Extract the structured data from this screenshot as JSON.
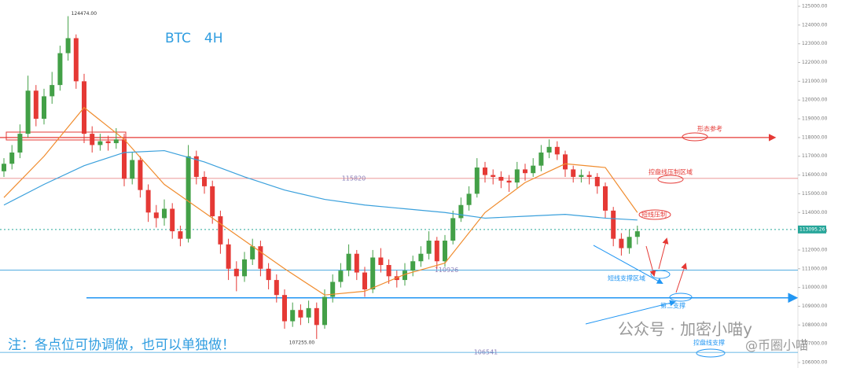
{
  "chart_data": {
    "type": "candlestick",
    "title": "BTC　4H",
    "note": "注：各点位可协调做，也可以单独做！",
    "watermark": "公众号 · 加密小喵y",
    "watermark_handle": "@币圈小喵",
    "up_color": "#43a047",
    "down_color": "#e53935",
    "ohlc": {
      "open": [
        116200,
        116600,
        117200,
        118200,
        120500,
        119000,
        120200,
        120800,
        122500,
        123300,
        121000,
        118200,
        117600,
        117800,
        117700,
        117900,
        115800,
        116800,
        115200,
        114000,
        113700,
        114200,
        113000,
        112600,
        117000,
        115900,
        115400,
        113800,
        112300,
        111000,
        110600,
        111500,
        112200,
        111000,
        110400,
        109600,
        108200,
        108800,
        108400,
        108900,
        108000,
        109500,
        110300,
        110900,
        111800,
        110800,
        109900,
        111600,
        111200,
        110600,
        110400,
        110900,
        111400,
        111800,
        112500,
        111400,
        112500,
        113700,
        114400,
        115000,
        116400,
        116000,
        115900,
        115700,
        115600,
        116300,
        116100,
        116500,
        117200,
        117500,
        117100,
        116300,
        115900,
        116000,
        115900,
        115400,
        114100,
        112600,
        112100,
        112700
      ],
      "high": [
        116900,
        117600,
        118700,
        121300,
        120800,
        120600,
        121500,
        122900,
        124474,
        123500,
        121400,
        118600,
        118200,
        118100,
        118500,
        118200,
        117200,
        117000,
        115500,
        114400,
        114700,
        114500,
        113300,
        117600,
        117300,
        116200,
        115700,
        114100,
        112600,
        111400,
        111900,
        112600,
        112500,
        111300,
        110700,
        109900,
        109200,
        109100,
        109300,
        109200,
        109900,
        110700,
        111300,
        112300,
        112000,
        111100,
        112000,
        112100,
        111500,
        110900,
        111300,
        111700,
        112200,
        113000,
        112700,
        112800,
        114100,
        114800,
        115400,
        116900,
        116700,
        116300,
        116200,
        116000,
        116700,
        116600,
        116900,
        117600,
        117900,
        117800,
        117300,
        116500,
        116300,
        116200,
        116100,
        115600,
        114300,
        112900,
        113100,
        113300
      ],
      "low": [
        115900,
        116300,
        116900,
        118000,
        118600,
        118700,
        119800,
        120500,
        122100,
        120600,
        117700,
        117200,
        117300,
        117300,
        117400,
        115400,
        115500,
        114800,
        113500,
        113200,
        113300,
        112600,
        112200,
        112400,
        115500,
        115000,
        113400,
        111800,
        110400,
        109800,
        110300,
        111200,
        110600,
        109900,
        109200,
        107800,
        107900,
        108000,
        108100,
        107255,
        107800,
        109200,
        110000,
        110600,
        110400,
        109500,
        109700,
        110800,
        110200,
        110000,
        110100,
        110600,
        111100,
        111500,
        111000,
        111100,
        112300,
        113500,
        114100,
        114800,
        115600,
        115500,
        115300,
        115100,
        115300,
        115700,
        115900,
        116200,
        116900,
        116800,
        115900,
        115600,
        115600,
        115500,
        115000,
        113700,
        112200,
        111700,
        111800,
        112300
      ],
      "close": [
        116600,
        117200,
        118200,
        120500,
        119000,
        120200,
        120800,
        122500,
        123300,
        121000,
        118200,
        117600,
        117800,
        117700,
        117900,
        115800,
        116800,
        115200,
        114000,
        113700,
        114200,
        113000,
        112600,
        117000,
        115900,
        115400,
        113800,
        112300,
        111000,
        110600,
        111500,
        112200,
        111000,
        110400,
        109600,
        108200,
        108800,
        108400,
        108900,
        108000,
        109500,
        110300,
        110900,
        111800,
        110800,
        109900,
        111600,
        111200,
        110600,
        110400,
        110900,
        111400,
        111800,
        112500,
        111400,
        112500,
        113700,
        114400,
        115000,
        116400,
        116000,
        115900,
        115700,
        115600,
        116300,
        116100,
        116500,
        117200,
        117500,
        117100,
        116300,
        115900,
        116000,
        115900,
        115400,
        114100,
        112600,
        112100,
        112700,
        113000
      ]
    },
    "moving_averages": [
      {
        "color": "#f08c2e",
        "x": [
          0,
          5,
          10,
          15,
          20,
          25,
          30,
          35,
          40,
          45,
          50,
          55,
          60,
          65,
          70,
          75,
          79
        ],
        "values": [
          114800,
          117000,
          119600,
          117900,
          115500,
          114000,
          112500,
          111000,
          109600,
          109800,
          110700,
          111300,
          114000,
          115600,
          116600,
          116400,
          114000
        ]
      },
      {
        "color": "#3aa0dc",
        "x": [
          0,
          5,
          10,
          15,
          20,
          25,
          30,
          35,
          40,
          45,
          50,
          55,
          60,
          65,
          70,
          75,
          79
        ],
        "values": [
          114400,
          115500,
          116500,
          117200,
          117300,
          116700,
          115900,
          115200,
          114700,
          114400,
          114200,
          114000,
          113700,
          113800,
          113900,
          113700,
          113600
        ]
      }
    ],
    "extremes": [
      {
        "index": 8,
        "value": 124474,
        "label": "124474.00"
      },
      {
        "index": 39,
        "value": 107255,
        "label": "107255.00"
      }
    ],
    "levels": [
      {
        "value": 118000,
        "color": "#e53935",
        "show_label": false
      },
      {
        "value": 115820,
        "color": "#e57373",
        "show_label": true
      },
      {
        "value": 110926,
        "color": "#3aa0dc",
        "show_label": true
      },
      {
        "value": 109450,
        "color": "#2196f3",
        "show_label": false
      },
      {
        "value": 106541,
        "color": "#3aa0dc",
        "show_label": true
      }
    ],
    "last_price": 113095.26,
    "annotations": [
      {
        "text": "形态参考",
        "color": "#e53935"
      },
      {
        "text": "控盘线压制区域",
        "color": "#e53935"
      },
      {
        "text": "短线压制",
        "color": "#e53935"
      },
      {
        "text": "短线支撑区域",
        "color": "#2196f3"
      },
      {
        "text": "第二支撑",
        "color": "#2196f3"
      },
      {
        "text": "控盘线支撑",
        "color": "#2196f3"
      }
    ],
    "ylim": [
      106000,
      125000
    ],
    "yticks": [
      {
        "value": 106000,
        "label": "106000.00"
      },
      {
        "value": 107000,
        "label": "107000.00"
      },
      {
        "value": 108000,
        "label": "108000.00"
      },
      {
        "value": 109000,
        "label": "109000.00"
      },
      {
        "value": 110000,
        "label": "110000.00"
      },
      {
        "value": 111000,
        "label": "111000.00"
      },
      {
        "value": 112000,
        "label": "112000.00"
      },
      {
        "value": 113000,
        "label": "113000.00"
      },
      {
        "value": 114000,
        "label": "114000.00"
      },
      {
        "value": 115000,
        "label": "115000.00"
      },
      {
        "value": 116000,
        "label": "116000.00"
      },
      {
        "value": 117000,
        "label": "117000.00"
      },
      {
        "value": 118000,
        "label": "118000.00"
      },
      {
        "value": 119000,
        "label": "119000.00"
      },
      {
        "value": 120000,
        "label": "120000.00"
      },
      {
        "value": 121000,
        "label": "121000.00"
      },
      {
        "value": 122000,
        "label": "122000.00"
      },
      {
        "value": 123000,
        "label": "123000.00"
      },
      {
        "value": 124000,
        "label": "124000.00"
      },
      {
        "value": 125000,
        "label": "125000.00"
      }
    ],
    "grid": false
  }
}
